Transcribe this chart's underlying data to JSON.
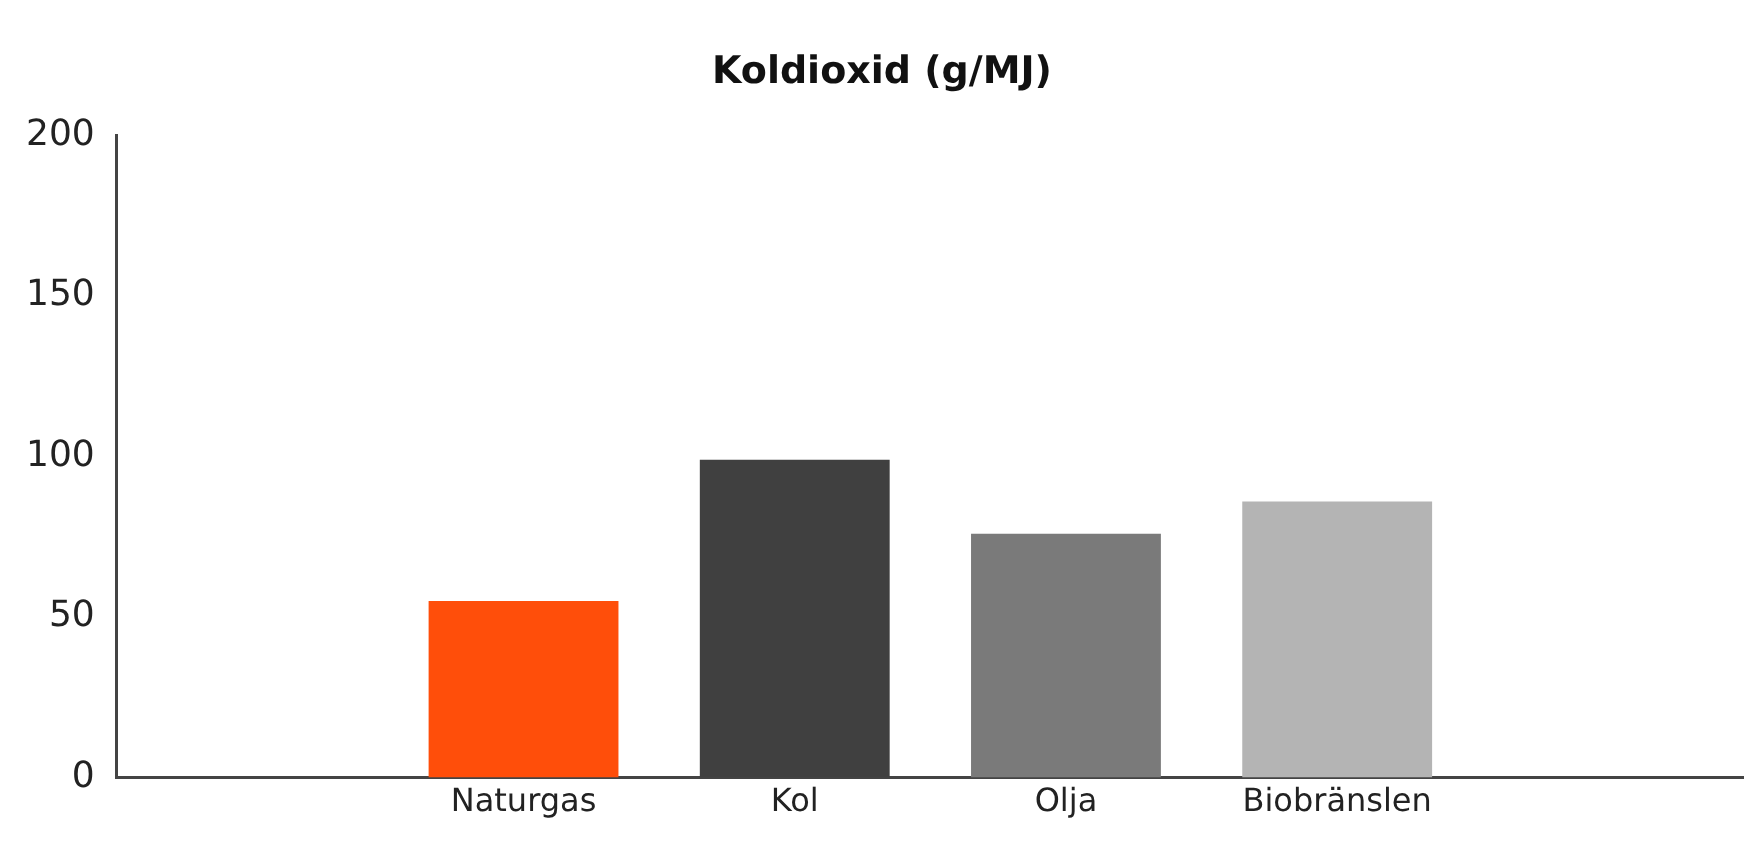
{
  "chart_data": {
    "type": "bar",
    "title": "Koldioxid (g/MJ)",
    "categories": [
      null,
      "Naturgas",
      "Kol",
      "Olja",
      "Biobränslen",
      null
    ],
    "values": [
      null,
      55,
      99,
      76,
      86,
      null
    ],
    "colors": [
      "#ff4e0a",
      "#ff4e0a",
      "#404040",
      "#7a7a7a",
      "#b4b4b4",
      "#b4b4b4"
    ],
    "ylim": [
      0,
      200
    ],
    "yticks": [
      0,
      50,
      100,
      150,
      200
    ],
    "grid": false,
    "legend": false
  }
}
